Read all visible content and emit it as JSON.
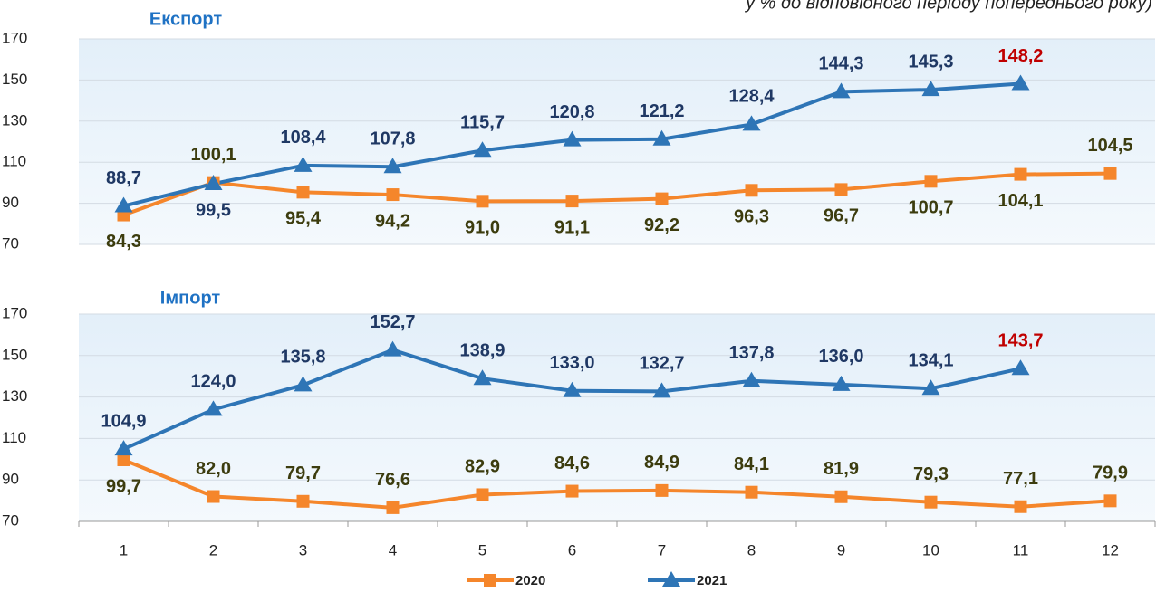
{
  "subtitle": "у % до відповідного періоду попереднього року)",
  "chart_data": [
    {
      "type": "line",
      "title": "Експорт",
      "ylim": [
        70,
        170
      ],
      "yticks": [
        70,
        90,
        110,
        130,
        150,
        170
      ],
      "grid": true,
      "series": [
        {
          "color": "#f5862b",
          "marker": "square",
          "label_color": "#3c3c0e",
          "values": [
            84.3,
            100.1,
            95.4,
            94.2,
            91.0,
            91.1,
            92.2,
            96.3,
            96.7,
            100.7,
            104.1,
            104.5
          ],
          "value_labels": [
            "84,3",
            "100,1",
            "95,4",
            "94,2",
            "91,0",
            "91,1",
            "92,2",
            "96,3",
            "96,7",
            "100,7",
            "104,1",
            "104,5"
          ]
        },
        {
          "color": "#2e75b6",
          "marker": "triangle",
          "label_color": "#1f3864",
          "values": [
            88.7,
            99.5,
            108.4,
            107.8,
            115.7,
            120.8,
            121.2,
            128.4,
            144.3,
            145.3,
            148.2,
            null
          ],
          "value_labels": [
            "88,7",
            "99,5",
            "108,4",
            "107,8",
            "115,7",
            "120,8",
            "121,2",
            "128,4",
            "144,3",
            "145,3",
            "148,2",
            null
          ]
        }
      ]
    },
    {
      "type": "line",
      "title": "Імпорт",
      "ylim": [
        70,
        170
      ],
      "yticks": [
        70,
        90,
        110,
        130,
        150,
        170
      ],
      "grid": true,
      "categories": [
        "1",
        "2",
        "3",
        "4",
        "5",
        "6",
        "7",
        "8",
        "9",
        "10",
        "11",
        "12"
      ],
      "series": [
        {
          "name": "2020",
          "color": "#f5862b",
          "marker": "square",
          "label_color": "#3c3c0e",
          "values": [
            99.7,
            82.0,
            79.7,
            76.6,
            82.9,
            84.6,
            84.9,
            84.1,
            81.9,
            79.3,
            77.1,
            79.9
          ],
          "value_labels": [
            "99,7",
            "82,0",
            "79,7",
            "76,6",
            "82,9",
            "84,6",
            "84,9",
            "84,1",
            "81,9",
            "79,3",
            "77,1",
            "79,9"
          ]
        },
        {
          "name": "2021",
          "color": "#2e75b6",
          "marker": "triangle",
          "label_color": "#1f3864",
          "values": [
            104.9,
            124.0,
            135.8,
            152.7,
            138.9,
            133.0,
            132.7,
            137.8,
            136.0,
            134.1,
            143.7,
            null
          ],
          "value_labels": [
            "104,9",
            "124,0",
            "135,8",
            "152,7",
            "138,9",
            "133,0",
            "132,7",
            "137,8",
            "136,0",
            "134,1",
            "143,7",
            null
          ]
        }
      ]
    }
  ]
}
